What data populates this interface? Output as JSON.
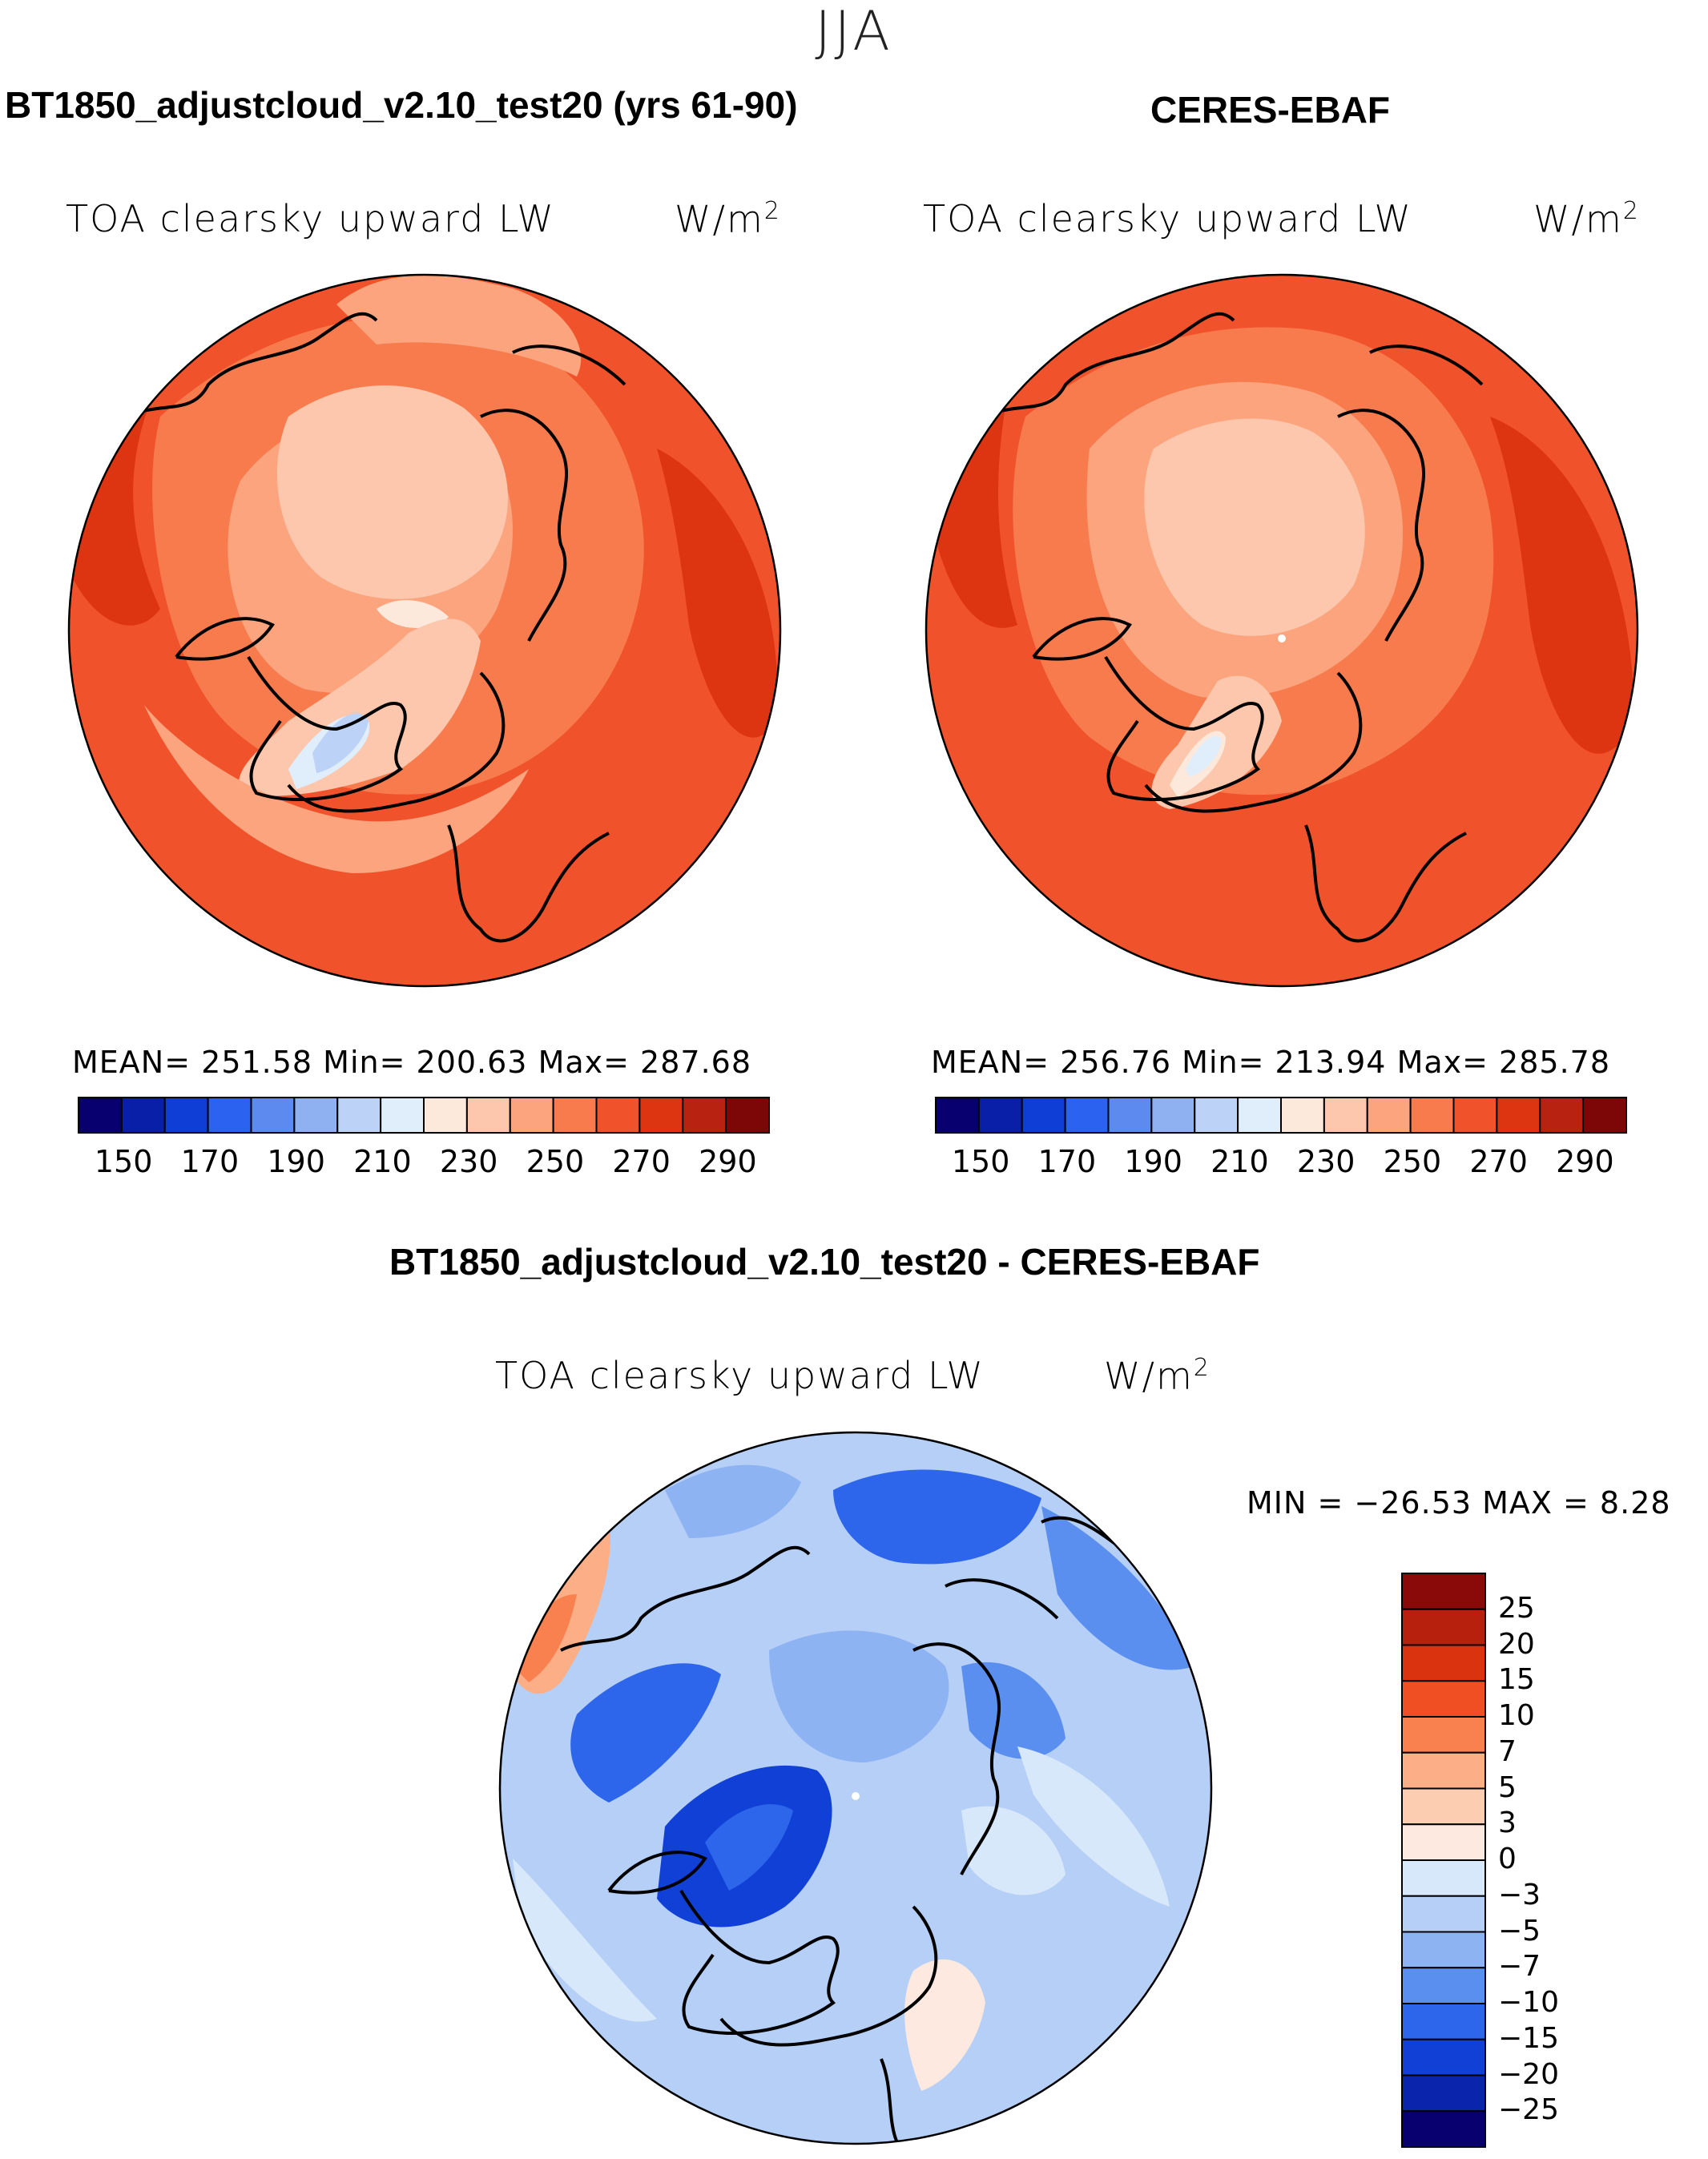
{
  "figure": {
    "season": "JJA",
    "diff_title": "BT1850_adjustcloud_v2.10_test20 - CERES-EBAF"
  },
  "panels": [
    {
      "title": "BT1850_adjustcloud_v2.10_test20 (yrs 61-90)",
      "variable": "TOA clearsky upward LW",
      "units": "W/m",
      "units_sup": "2",
      "stats_text": "MEAN= 251.58   Min= 200.63   Max= 287.68"
    },
    {
      "title": "CERES-EBAF",
      "variable": "TOA clearsky upward LW",
      "units": "W/m",
      "units_sup": "2",
      "stats_text": "MEAN= 256.76   Min= 213.94   Max= 285.78"
    },
    {
      "variable": "TOA clearsky upward LW",
      "units": "W/m",
      "units_sup": "2",
      "stats_text": "MIN = −26.53  MAX =    8.28"
    }
  ],
  "colorbars": {
    "abs": {
      "colors": [
        "#08006e",
        "#0a1fa8",
        "#0f3ed6",
        "#2b62ef",
        "#5d8aef",
        "#8fb1f2",
        "#bcd3f7",
        "#e0eefb",
        "#fde8dc",
        "#fcc7ac",
        "#fba47d",
        "#f87b4e",
        "#f0532b",
        "#dd3412",
        "#b82210",
        "#7d0707"
      ],
      "tick_labels": [
        "150",
        "170",
        "190",
        "210",
        "230",
        "250",
        "270",
        "290"
      ]
    },
    "diff": {
      "colors": [
        "#8a0a0a",
        "#b8200e",
        "#d93310",
        "#ef4f22",
        "#f9804f",
        "#fcae86",
        "#fdcdb2",
        "#fde9df",
        "#d8e8fb",
        "#b5cff6",
        "#8eb3f3",
        "#5a8ff0",
        "#2d66ea",
        "#1040d6",
        "#0a24ac",
        "#08006e"
      ],
      "tick_labels": [
        "25",
        "20",
        "15",
        "10",
        "7",
        "5",
        "3",
        "0",
        "−3",
        "−5",
        "−7",
        "−10",
        "−15",
        "−20",
        "−25"
      ]
    }
  }
}
